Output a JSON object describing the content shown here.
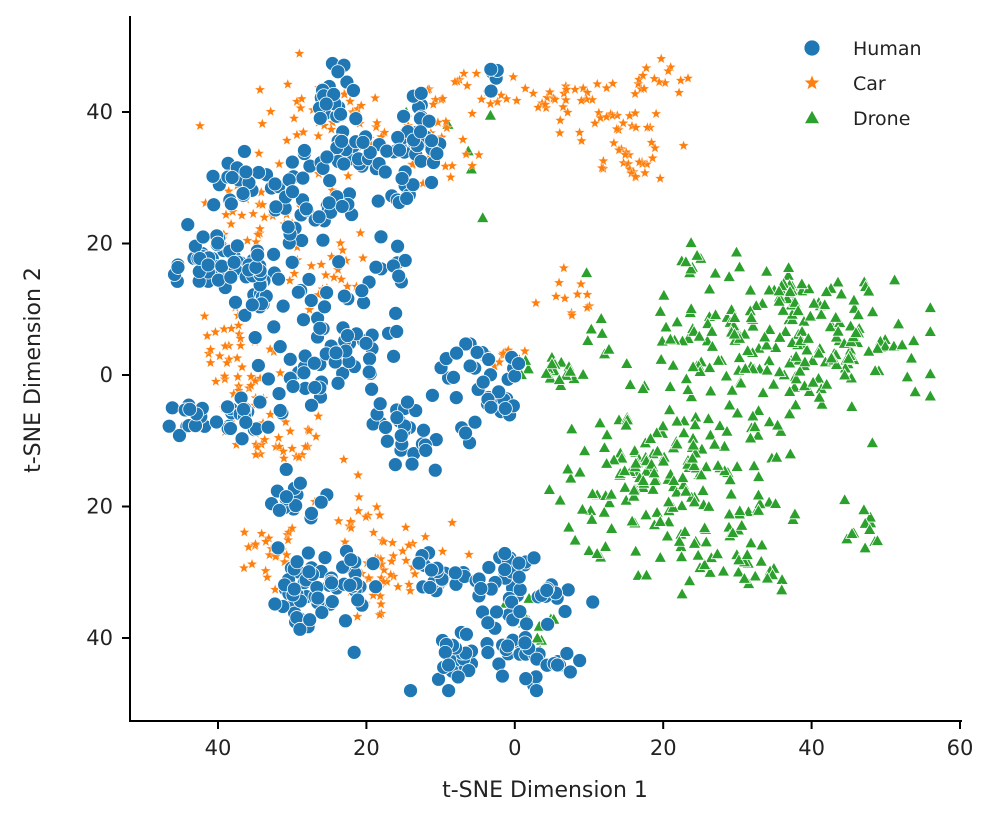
{
  "chart_data": {
    "type": "scatter",
    "title": "",
    "xlabel": "t-SNE Dimension 1",
    "ylabel": "t-SNE Dimension 2",
    "xlim": [
      -52,
      60
    ],
    "ylim": [
      -52,
      54
    ],
    "x_ticks": [
      -40,
      -20,
      0,
      20,
      40,
      60
    ],
    "x_tick_labels": [
      "40",
      "20",
      "0",
      "20",
      "40",
      "60"
    ],
    "y_ticks": [
      -40,
      -20,
      0,
      20,
      40
    ],
    "y_tick_labels": [
      "40",
      "20",
      "0",
      "20",
      "40"
    ],
    "legend_position": "top-right",
    "series": [
      {
        "name": "Human",
        "marker": "circle",
        "color": "#1f77b4",
        "clusters": [
          {
            "cx": -41,
            "cy": 17,
            "rx": 4,
            "ry": 4,
            "n": 45
          },
          {
            "cx": -33,
            "cy": 14,
            "rx": 6,
            "ry": 6,
            "n": 50
          },
          {
            "cx": -44,
            "cy": -7,
            "rx": 3,
            "ry": 3,
            "n": 15
          },
          {
            "cx": -37,
            "cy": -7,
            "rx": 3,
            "ry": 3,
            "n": 20
          },
          {
            "cx": -34,
            "cy": 30,
            "rx": 5,
            "ry": 3,
            "n": 25
          },
          {
            "cx": -25,
            "cy": 42,
            "rx": 3,
            "ry": 4,
            "n": 20
          },
          {
            "cx": -22,
            "cy": 33,
            "rx": 6,
            "ry": 4,
            "n": 35
          },
          {
            "cx": -27,
            "cy": 26,
            "rx": 4,
            "ry": 3,
            "n": 20
          },
          {
            "cx": -13,
            "cy": 37,
            "rx": 3,
            "ry": 6,
            "n": 30
          },
          {
            "cx": -16,
            "cy": 28,
            "rx": 2,
            "ry": 2,
            "n": 10
          },
          {
            "cx": -16,
            "cy": 17,
            "rx": 3,
            "ry": 3,
            "n": 10
          },
          {
            "cx": -20,
            "cy": 5,
            "rx": 5,
            "ry": 5,
            "n": 25
          },
          {
            "cx": -28,
            "cy": 0,
            "rx": 6,
            "ry": 6,
            "n": 30
          },
          {
            "cx": -15,
            "cy": -8,
            "rx": 5,
            "ry": 6,
            "n": 30
          },
          {
            "cx": -2,
            "cy": -3,
            "rx": 4,
            "ry": 6,
            "n": 25
          },
          {
            "cx": -7,
            "cy": 2,
            "rx": 3,
            "ry": 3,
            "n": 12
          },
          {
            "cx": -30,
            "cy": -20,
            "rx": 4,
            "ry": 3,
            "n": 15
          },
          {
            "cx": -29,
            "cy": -33,
            "rx": 4,
            "ry": 6,
            "n": 35
          },
          {
            "cx": -23,
            "cy": -33,
            "rx": 4,
            "ry": 5,
            "n": 30
          },
          {
            "cx": -10,
            "cy": -30,
            "rx": 4,
            "ry": 3,
            "n": 20
          },
          {
            "cx": -1,
            "cy": -31,
            "rx": 4,
            "ry": 4,
            "n": 30
          },
          {
            "cx": -7,
            "cy": -42,
            "rx": 3,
            "ry": 4,
            "n": 25
          },
          {
            "cx": 1,
            "cy": -42,
            "rx": 4,
            "ry": 4,
            "n": 25
          },
          {
            "cx": 5,
            "cy": -35,
            "rx": 3,
            "ry": 2,
            "n": 12
          },
          {
            "cx": 6,
            "cy": -44,
            "rx": 2,
            "ry": 1,
            "n": 8
          },
          {
            "cx": -3,
            "cy": 45,
            "rx": 1,
            "ry": 3,
            "n": 5
          }
        ]
      },
      {
        "name": "Car",
        "marker": "star",
        "color": "#ff7f0e",
        "clusters": [
          {
            "cx": -25,
            "cy": 38,
            "rx": 10,
            "ry": 6,
            "n": 50
          },
          {
            "cx": -35,
            "cy": 25,
            "rx": 6,
            "ry": 5,
            "n": 30
          },
          {
            "cx": -38,
            "cy": 5,
            "rx": 5,
            "ry": 5,
            "n": 30
          },
          {
            "cx": -36,
            "cy": -5,
            "rx": 4,
            "ry": 5,
            "n": 25
          },
          {
            "cx": -25,
            "cy": 14,
            "rx": 5,
            "ry": 5,
            "n": 25
          },
          {
            "cx": -30,
            "cy": -10,
            "rx": 5,
            "ry": 4,
            "n": 20
          },
          {
            "cx": -10,
            "cy": 33,
            "rx": 5,
            "ry": 4,
            "n": 20
          },
          {
            "cx": 0,
            "cy": 43,
            "rx": 10,
            "ry": 3,
            "n": 40
          },
          {
            "cx": 12,
            "cy": 40,
            "rx": 9,
            "ry": 4,
            "n": 35
          },
          {
            "cx": 16,
            "cy": 33,
            "rx": 5,
            "ry": 3,
            "n": 25
          },
          {
            "cx": 20,
            "cy": 45,
            "rx": 3,
            "ry": 2,
            "n": 12
          },
          {
            "cx": 7,
            "cy": 12,
            "rx": 3,
            "ry": 3,
            "n": 12
          },
          {
            "cx": -1,
            "cy": 3,
            "rx": 3,
            "ry": 1,
            "n": 8
          },
          {
            "cx": -32,
            "cy": -27,
            "rx": 5,
            "ry": 4,
            "n": 25
          },
          {
            "cx": -22,
            "cy": -22,
            "rx": 4,
            "ry": 4,
            "n": 15
          },
          {
            "cx": -18,
            "cy": -32,
            "rx": 5,
            "ry": 4,
            "n": 25
          },
          {
            "cx": -14,
            "cy": -27,
            "rx": 5,
            "ry": 4,
            "n": 25
          }
        ]
      },
      {
        "name": "Drone",
        "marker": "triangle",
        "color": "#2ca02c",
        "clusters": [
          {
            "cx": 30,
            "cy": 5,
            "rx": 14,
            "ry": 9,
            "n": 120
          },
          {
            "cx": 25,
            "cy": -15,
            "rx": 12,
            "ry": 10,
            "n": 120
          },
          {
            "cx": 45,
            "cy": 5,
            "rx": 9,
            "ry": 8,
            "n": 80
          },
          {
            "cx": 15,
            "cy": -15,
            "rx": 8,
            "ry": 12,
            "n": 60
          },
          {
            "cx": 30,
            "cy": -27,
            "rx": 8,
            "ry": 6,
            "n": 40
          },
          {
            "cx": 5,
            "cy": 0,
            "rx": 4,
            "ry": 2,
            "n": 20
          },
          {
            "cx": 37,
            "cy": 13,
            "rx": 5,
            "ry": 3,
            "n": 25
          },
          {
            "cx": 47,
            "cy": -23,
            "rx": 3,
            "ry": 3,
            "n": 12
          },
          {
            "cx": 3,
            "cy": -37,
            "rx": 3,
            "ry": 5,
            "n": 12
          },
          {
            "cx": -8,
            "cy": 27,
            "rx": 6,
            "ry": 12,
            "n": 7
          },
          {
            "cx": 25,
            "cy": 18,
            "rx": 3,
            "ry": 3,
            "n": 10
          }
        ]
      }
    ]
  }
}
